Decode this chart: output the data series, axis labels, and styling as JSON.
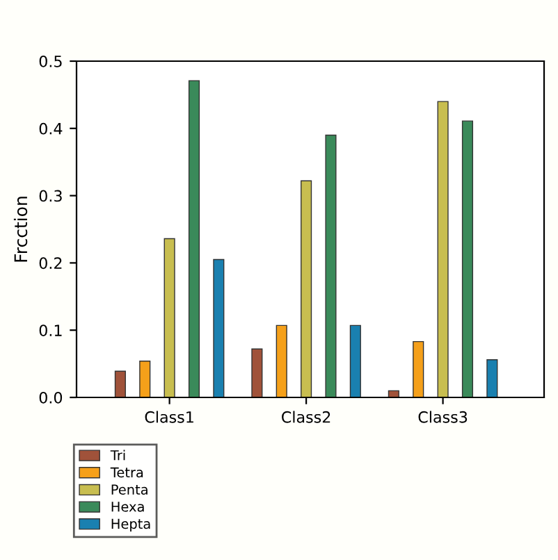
{
  "chart_data": {
    "type": "bar",
    "ylabel": "Frcction",
    "categories": [
      "Class1",
      "Class2",
      "Class3"
    ],
    "series": [
      {
        "name": "Tri",
        "color": "#a0523a",
        "values": [
          0.039,
          0.072,
          0.01
        ]
      },
      {
        "name": "Tetra",
        "color": "#f5a01a",
        "values": [
          0.054,
          0.107,
          0.083
        ]
      },
      {
        "name": "Penta",
        "color": "#c8be50",
        "values": [
          0.236,
          0.322,
          0.44
        ]
      },
      {
        "name": "Hexa",
        "color": "#3a8a5a",
        "values": [
          0.471,
          0.39,
          0.411
        ]
      },
      {
        "name": "Hepta",
        "color": "#1a80b0",
        "values": [
          0.205,
          0.107,
          0.056
        ]
      }
    ],
    "ylim": [
      0,
      0.5
    ],
    "yticks": [
      {
        "value": 0,
        "label": "0.0"
      },
      0.1,
      0.2,
      0.3,
      0.4,
      0.5
    ],
    "grid": false,
    "legend": "bottom left"
  }
}
